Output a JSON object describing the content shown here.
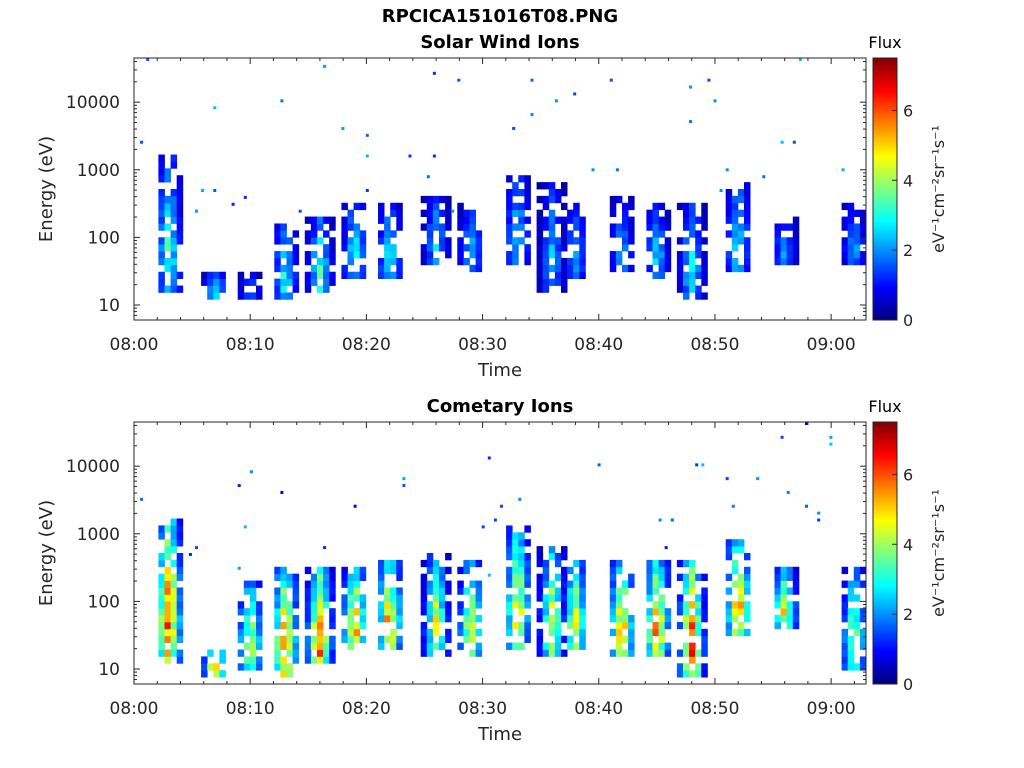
{
  "title": "RPCICA151016T08.PNG",
  "colors": {
    "colormap": [
      "#00007f",
      "#0000ff",
      "#007fff",
      "#00ffff",
      "#7fff7f",
      "#ffff00",
      "#ff7f00",
      "#ff0000",
      "#7f0000"
    ]
  },
  "chart_data": [
    {
      "type": "heatmap",
      "title": "Solar Wind Ions",
      "xlabel": "Time",
      "ylabel": "Energy (eV)",
      "yscale": "log",
      "ylim": [
        6,
        45000
      ],
      "xlim": [
        "08:00",
        "09:03"
      ],
      "x_ticks": [
        "08:00",
        "08:10",
        "08:20",
        "08:30",
        "08:40",
        "08:50",
        "09:00"
      ],
      "y_ticks": [
        "10",
        "100",
        "1000",
        "10000"
      ],
      "colorbar": {
        "label": "Flux",
        "unit": "eV⁻¹cm⁻²sr⁻¹s⁻¹",
        "range": [
          0,
          7.5
        ],
        "ticks": [
          "0",
          "2",
          "4",
          "6"
        ]
      },
      "grid": false,
      "bursts": [
        {
          "t": "08:03",
          "emin": 15,
          "emax": 1500,
          "peak": 3.6
        },
        {
          "t": "08:07",
          "emin": 12,
          "emax": 30,
          "peak": 3.2
        },
        {
          "t": "08:10",
          "emin": 12,
          "emax": 30,
          "peak": 2.0
        },
        {
          "t": "08:13",
          "emin": 12,
          "emax": 150,
          "peak": 3.4
        },
        {
          "t": "08:16",
          "emin": 15,
          "emax": 200,
          "peak": 3.6
        },
        {
          "t": "08:19",
          "emin": 25,
          "emax": 300,
          "peak": 3.4
        },
        {
          "t": "08:22",
          "emin": 25,
          "emax": 300,
          "peak": 3.4
        },
        {
          "t": "08:26",
          "emin": 40,
          "emax": 400,
          "peak": 2.8
        },
        {
          "t": "08:29",
          "emin": 30,
          "emax": 300,
          "peak": 2.6
        },
        {
          "t": "08:33",
          "emin": 40,
          "emax": 800,
          "peak": 3.0
        },
        {
          "t": "08:36",
          "emin": 15,
          "emax": 600,
          "peak": 2.6
        },
        {
          "t": "08:38",
          "emin": 25,
          "emax": 300,
          "peak": 2.4
        },
        {
          "t": "08:42",
          "emin": 30,
          "emax": 400,
          "peak": 2.4
        },
        {
          "t": "08:45",
          "emin": 25,
          "emax": 300,
          "peak": 2.8
        },
        {
          "t": "08:48",
          "emin": 12,
          "emax": 300,
          "peak": 3.2
        },
        {
          "t": "08:52",
          "emin": 30,
          "emax": 600,
          "peak": 3.4
        },
        {
          "t": "08:56",
          "emin": 40,
          "emax": 200,
          "peak": 2.4
        },
        {
          "t": "09:02",
          "emin": 40,
          "emax": 300,
          "peak": 2.4
        }
      ]
    },
    {
      "type": "heatmap",
      "title": "Cometary Ions",
      "xlabel": "Time",
      "ylabel": "Energy (eV)",
      "yscale": "log",
      "ylim": [
        6,
        45000
      ],
      "xlim": [
        "08:00",
        "09:03"
      ],
      "x_ticks": [
        "08:00",
        "08:10",
        "08:20",
        "08:30",
        "08:40",
        "08:50",
        "09:00"
      ],
      "y_ticks": [
        "10",
        "100",
        "1000",
        "10000"
      ],
      "colorbar": {
        "label": "Flux",
        "unit": "eV⁻¹cm⁻²sr⁻¹s⁻¹",
        "range": [
          0,
          7.5
        ],
        "ticks": [
          "0",
          "2",
          "4",
          "6"
        ]
      },
      "grid": false,
      "bursts": [
        {
          "t": "08:03",
          "emin": 12,
          "emax": 1800,
          "peak": 6.8
        },
        {
          "t": "08:07",
          "emin": 8,
          "emax": 25,
          "peak": 5.8
        },
        {
          "t": "08:10",
          "emin": 10,
          "emax": 200,
          "peak": 5.2
        },
        {
          "t": "08:13",
          "emin": 8,
          "emax": 300,
          "peak": 6.6
        },
        {
          "t": "08:16",
          "emin": 12,
          "emax": 300,
          "peak": 7.0
        },
        {
          "t": "08:19",
          "emin": 20,
          "emax": 300,
          "peak": 6.5
        },
        {
          "t": "08:22",
          "emin": 20,
          "emax": 400,
          "peak": 6.4
        },
        {
          "t": "08:26",
          "emin": 15,
          "emax": 500,
          "peak": 5.0
        },
        {
          "t": "08:29",
          "emin": 15,
          "emax": 400,
          "peak": 5.0
        },
        {
          "t": "08:33",
          "emin": 20,
          "emax": 1200,
          "peak": 5.6
        },
        {
          "t": "08:36",
          "emin": 15,
          "emax": 600,
          "peak": 5.2
        },
        {
          "t": "08:38",
          "emin": 20,
          "emax": 400,
          "peak": 5.2
        },
        {
          "t": "08:42",
          "emin": 15,
          "emax": 400,
          "peak": 6.2
        },
        {
          "t": "08:45",
          "emin": 15,
          "emax": 400,
          "peak": 6.6
        },
        {
          "t": "08:48",
          "emin": 8,
          "emax": 400,
          "peak": 7.0
        },
        {
          "t": "08:52",
          "emin": 30,
          "emax": 800,
          "peak": 6.4
        },
        {
          "t": "08:56",
          "emin": 40,
          "emax": 300,
          "peak": 5.4
        },
        {
          "t": "09:02",
          "emin": 10,
          "emax": 300,
          "peak": 4.6
        }
      ]
    }
  ]
}
